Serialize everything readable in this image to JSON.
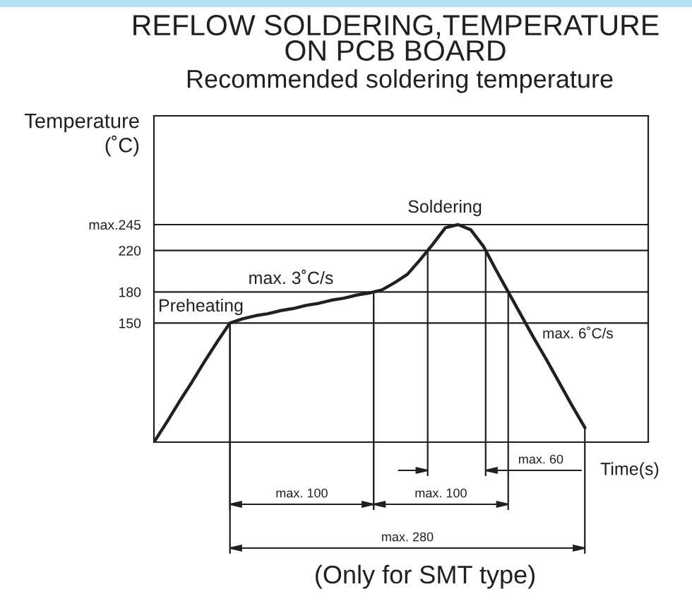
{
  "chart_data": {
    "type": "line",
    "title": "REFLOW SOLDERING,TEMPERATURE\nON PCB BOARD",
    "subtitle": "Recommended soldering temperature",
    "xlabel": "Time(s)",
    "ylabel": "Temperature\n(˚C)",
    "categories": [
      null,
      null,
      null,
      null,
      null,
      null,
      null,
      null,
      null,
      null,
      null,
      null,
      null,
      null,
      null,
      null,
      null,
      null,
      null,
      null,
      null,
      null,
      null,
      null,
      null,
      null,
      null,
      null,
      null,
      null,
      null,
      null,
      null,
      null,
      null,
      null,
      null,
      null,
      null,
      null
    ],
    "series": [
      {
        "color": "#231f20",
        "values": [
          35,
          54,
          74,
          93,
          113,
          132,
          150,
          154,
          157,
          159,
          162,
          164,
          167,
          169,
          172,
          174,
          177,
          179,
          182,
          189,
          197,
          211,
          226,
          242,
          245,
          240,
          224,
          201,
          179,
          157,
          135,
          114,
          92,
          70,
          49,
          null,
          null,
          null,
          null,
          null
        ]
      }
    ],
    "ylim": [
      35,
      350
    ],
    "yticks": [
      150,
      180,
      220,
      {
        "value": 245,
        "label": "max.245"
      }
    ],
    "grid": "y",
    "annotations": [
      "Preheating",
      "max. 3˚C/s",
      "Soldering",
      "max. 6˚C/s",
      "max. 60",
      "max. 100",
      "max. 100",
      "max. 280",
      "(Only for SMT type)"
    ]
  }
}
